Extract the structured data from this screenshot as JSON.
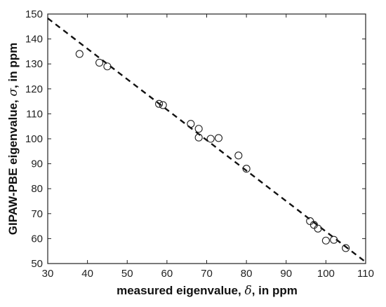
{
  "chart_data": {
    "type": "scatter",
    "title": "",
    "xlabel": {
      "prefix": "measured eigenvalue, ",
      "symbol": "δ",
      "suffix": ", in ppm"
    },
    "ylabel": {
      "prefix": "GIPAW-PBE eigenvalue, ",
      "symbol": "σ",
      "suffix": ", in ppm"
    },
    "xlim": [
      30,
      110
    ],
    "ylim": [
      50,
      150
    ],
    "xticks": [
      30,
      40,
      50,
      60,
      70,
      80,
      90,
      100,
      110
    ],
    "yticks": [
      50,
      60,
      70,
      80,
      90,
      100,
      110,
      120,
      130,
      140,
      150
    ],
    "grid": false,
    "legend": "none",
    "marker": "open-circle",
    "fit_line": {
      "style": "dashed",
      "x": [
        30,
        110
      ],
      "y": [
        148.3,
        50.6
      ]
    },
    "points": [
      {
        "x": 38,
        "y": 134
      },
      {
        "x": 43,
        "y": 130.5
      },
      {
        "x": 45,
        "y": 129
      },
      {
        "x": 58,
        "y": 114
      },
      {
        "x": 59,
        "y": 113.5
      },
      {
        "x": 66,
        "y": 106
      },
      {
        "x": 68,
        "y": 104
      },
      {
        "x": 68,
        "y": 100.5
      },
      {
        "x": 71,
        "y": 100
      },
      {
        "x": 73,
        "y": 100.3
      },
      {
        "x": 78,
        "y": 93.3
      },
      {
        "x": 80,
        "y": 88
      },
      {
        "x": 96,
        "y": 67
      },
      {
        "x": 97,
        "y": 65.5
      },
      {
        "x": 98,
        "y": 64
      },
      {
        "x": 100,
        "y": 59.2
      },
      {
        "x": 102,
        "y": 59.5
      },
      {
        "x": 105,
        "y": 56.2
      }
    ]
  }
}
